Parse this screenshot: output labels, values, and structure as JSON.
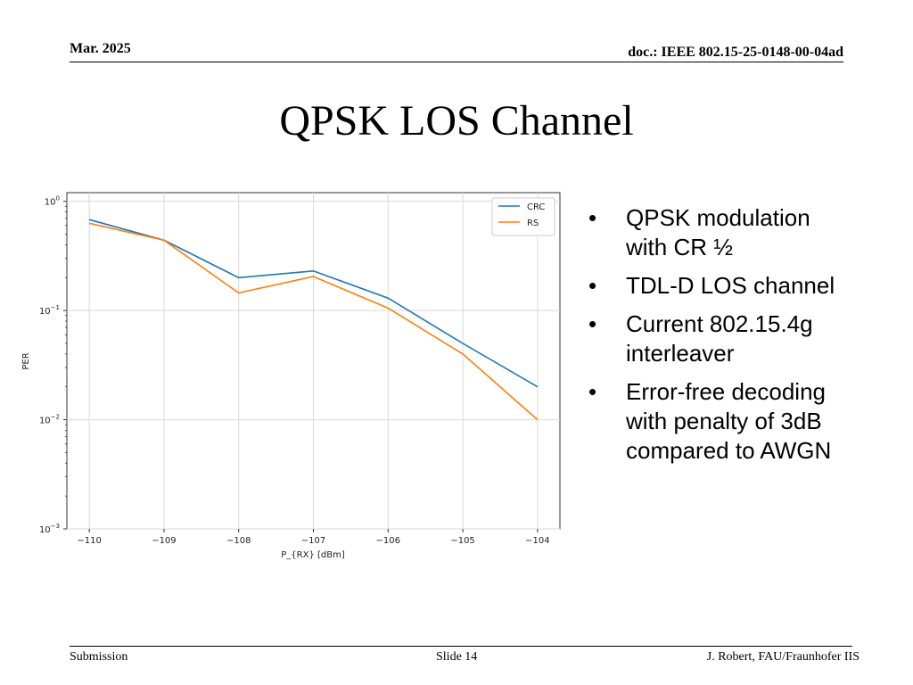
{
  "header": {
    "date": "Mar. 2025",
    "doc": "doc.: IEEE 802.15-25-0148-00-04ad"
  },
  "title": "QPSK LOS Channel",
  "bullets": [
    "QPSK modulation with CR ½",
    "TDL-D LOS channel",
    "Current 802.15.4g interleaver",
    "Error-free decoding with penalty of 3dB compared to AWGN"
  ],
  "footer": {
    "left": "Submission",
    "center": "Slide 14",
    "right": "J. Robert, FAU/Fraunhofer IIS"
  },
  "chart_data": {
    "type": "line",
    "xlabel": "P_{RX} [dBm]",
    "ylabel": "PER",
    "x": [
      -110,
      -109,
      -108,
      -107,
      -106,
      -105,
      -104
    ],
    "x_ticks": [
      "−110",
      "−109",
      "−108",
      "−107",
      "−106",
      "−105",
      "−104"
    ],
    "y_scale": "log",
    "ylim": [
      0.001,
      1.2
    ],
    "y_ticks": [
      {
        "value": 1,
        "base": "10",
        "exp": "0"
      },
      {
        "value": 0.1,
        "base": "10",
        "exp": "−1"
      },
      {
        "value": 0.01,
        "base": "10",
        "exp": "−2"
      },
      {
        "value": 0.001,
        "base": "10",
        "exp": "−3"
      }
    ],
    "grid": true,
    "legend_position": "top-right",
    "series": [
      {
        "name": "CRC",
        "color": "#1f77b4",
        "values": [
          0.68,
          0.44,
          0.2,
          0.23,
          0.13,
          0.05,
          0.02
        ]
      },
      {
        "name": "RS",
        "color": "#ff7f0e",
        "values": [
          0.63,
          0.44,
          0.145,
          0.205,
          0.105,
          0.04,
          0.01
        ]
      }
    ]
  }
}
